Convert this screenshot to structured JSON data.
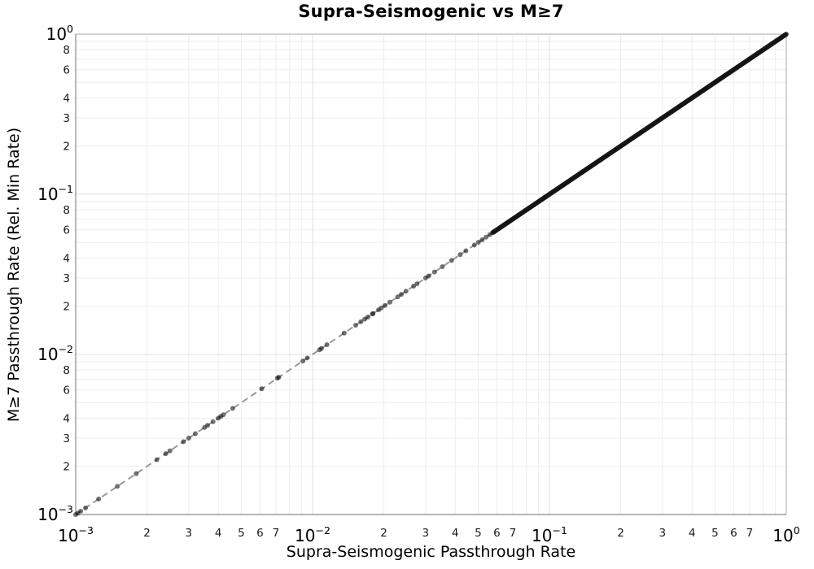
{
  "chart_data": {
    "type": "scatter",
    "title": "Supra-Seismogenic vs M≥7",
    "xlabel": "Supra-Seismogenic Passthrough Rate",
    "ylabel": "M≥7 Passthrough Rate (Rel. Min Rate)",
    "x_scale": "log",
    "y_scale": "log",
    "xlim": [
      0.001,
      1.0
    ],
    "ylim": [
      0.001,
      1.0
    ],
    "grid": {
      "major_color": "#e0e0e0",
      "minor_color": "#ededed",
      "major_on": true,
      "minor_on": true
    },
    "legend": "none",
    "axes": {
      "major_exponents": [
        -3,
        -2,
        -1,
        0
      ],
      "x_major_tick_labels": [
        "10^-3",
        "10^-2",
        "10^-1",
        "10^0"
      ],
      "y_major_tick_labels": [
        "10^-3",
        "10^-2",
        "10^-1",
        "10^0"
      ],
      "x_minor_labeled_subs": [
        2,
        3,
        4,
        5,
        6,
        7
      ],
      "y_minor_labeled_subs": [
        2,
        3,
        4,
        6,
        8
      ],
      "grid_subs": [
        2,
        3,
        4,
        5,
        6,
        7,
        8,
        9
      ],
      "minor_decades": [
        -3,
        -2,
        -1
      ],
      "spine_color": "#a8a8a8",
      "axis_line_color": "#8a8a8a"
    },
    "reference_line": {
      "description": "dashed 1:1 identity line y = x",
      "from": [
        0.001,
        0.001
      ],
      "to": [
        1.0,
        1.0
      ],
      "color": "#999999",
      "dash": "8 5",
      "width": 2
    },
    "relationship": "All data points lie on the identity line y = x",
    "points_xy_equal": [
      0.001,
      0.00102,
      0.00105,
      0.0011,
      0.00125,
      0.0015,
      0.0018,
      0.0022,
      0.0024,
      0.0025,
      0.00285,
      0.003,
      0.0032,
      0.0035,
      0.0036,
      0.0038,
      0.004,
      0.0041,
      0.0042,
      0.0046,
      0.0061,
      0.0071,
      0.0072,
      0.0091,
      0.0095,
      0.0107,
      0.0109,
      0.0115,
      0.0136,
      0.0152,
      0.016,
      0.0166,
      0.0171,
      0.0179,
      0.018,
      0.019,
      0.0195,
      0.0202,
      0.0212,
      0.0229,
      0.0237,
      0.0248,
      0.0267,
      0.0276,
      0.03,
      0.0309,
      0.0327,
      0.0353,
      0.0386,
      0.042,
      0.0444,
      0.0482,
      0.0501,
      0.052,
      0.054,
      0.056,
      0.058
    ],
    "dense_band": {
      "note": "near-continuous overlap of points on y=x forming a solid black band up to (1,1)",
      "log10_min": -1.24,
      "log10_max": 0,
      "count": 620
    },
    "marker": {
      "color": "#151515",
      "opacity": 0.6,
      "radius": 3
    },
    "text_colors": {
      "title": "#000000",
      "major_ticks": "#000000",
      "minor_ticks": "#1a1a1a"
    }
  }
}
